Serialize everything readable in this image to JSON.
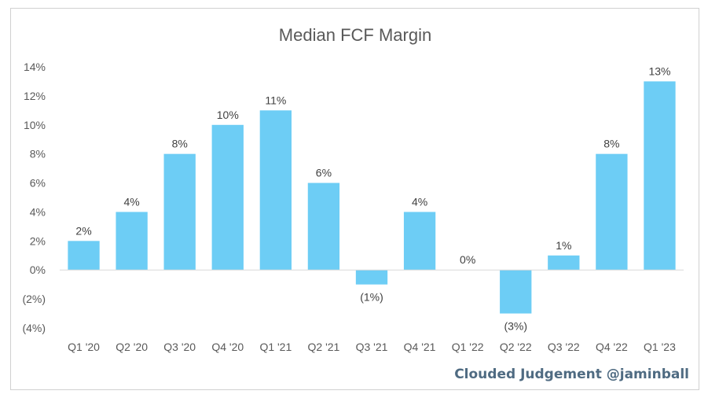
{
  "chart_data": {
    "type": "bar",
    "title": "Median FCF Margin",
    "categories": [
      "Q1 '20",
      "Q2 '20",
      "Q3 '20",
      "Q4 '20",
      "Q1 '21",
      "Q2 '21",
      "Q3 '21",
      "Q4 '21",
      "Q1 '22",
      "Q2 '22",
      "Q3 '22",
      "Q4 '22",
      "Q1 '23"
    ],
    "values": [
      2,
      4,
      8,
      10,
      11,
      6,
      -1,
      4,
      0,
      -3,
      1,
      8,
      13
    ],
    "data_labels": [
      "2%",
      "4%",
      "8%",
      "10%",
      "11%",
      "6%",
      "(1%)",
      "4%",
      "0%",
      "(3%)",
      "1%",
      "8%",
      "13%"
    ],
    "ylim": [
      -4,
      14
    ],
    "yticks": [
      14,
      12,
      10,
      8,
      6,
      4,
      2,
      0,
      -2,
      -4
    ],
    "ytick_labels": [
      "14%",
      "12%",
      "10%",
      "8%",
      "6%",
      "4%",
      "2%",
      "0%",
      "(2%)",
      "(4%)"
    ],
    "xlabel": "",
    "ylabel": "",
    "grid": false,
    "bar_color": "#6DCDF5"
  },
  "watermark": "Clouded Judgement @jaminball"
}
